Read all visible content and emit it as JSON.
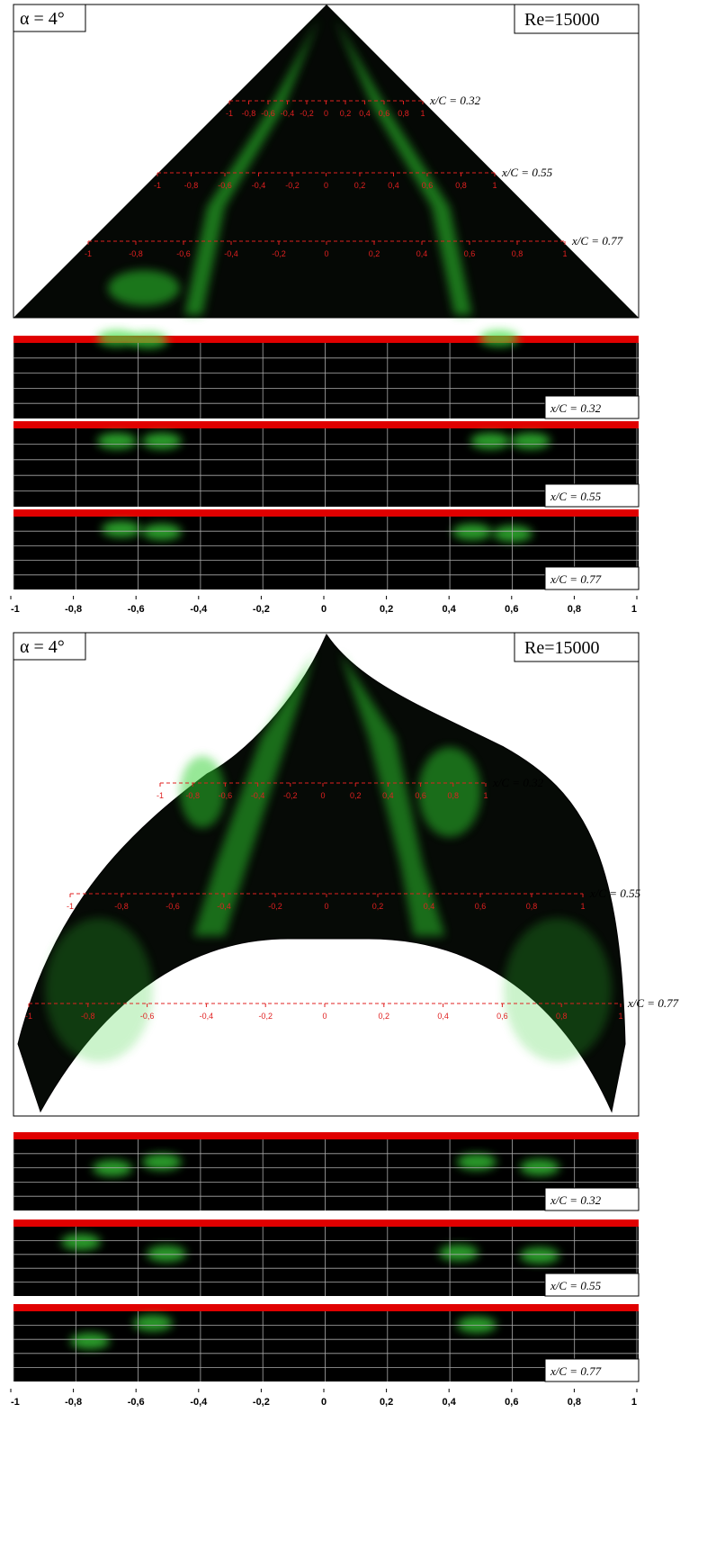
{
  "scale_labels": [
    "-1",
    "-0,8",
    "-0,6",
    "-0,4",
    "-0,2",
    "0",
    "0,2",
    "0,4",
    "0,6",
    "0,8",
    "1"
  ],
  "panels": [
    {
      "alpha": "α = 4°",
      "reynolds": "Re=15000",
      "stations": [
        "x/C = 0.32",
        "x/C = 0.55",
        "x/C = 0.77"
      ]
    },
    {
      "alpha": "α = 4°",
      "reynolds": "Re=15000",
      "stations": [
        "x/C = 0.32",
        "x/C = 0.55",
        "x/C = 0.77"
      ]
    }
  ]
}
